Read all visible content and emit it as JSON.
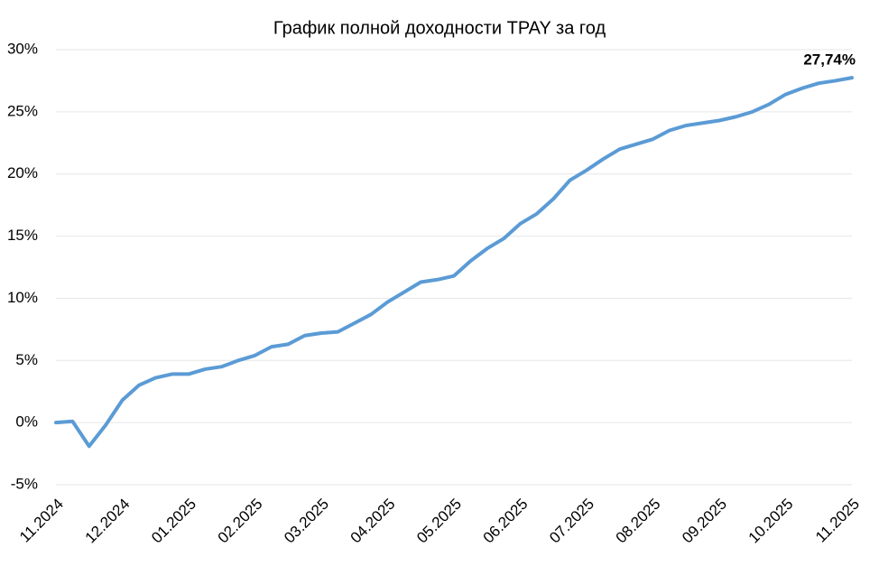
{
  "chart_data": {
    "type": "line",
    "title": "График полной доходности TPAY за год",
    "categories": [
      "11.2024",
      null,
      null,
      null,
      "12.2024",
      null,
      null,
      null,
      "01.2025",
      null,
      null,
      null,
      "02.2025",
      null,
      null,
      null,
      "03.2025",
      null,
      null,
      null,
      "04.2025",
      null,
      null,
      null,
      "05.2025",
      null,
      null,
      null,
      "06.2025",
      null,
      null,
      null,
      "07.2025",
      null,
      null,
      null,
      "08.2025",
      null,
      null,
      null,
      "09.2025",
      null,
      null,
      null,
      "10.2025",
      null,
      null,
      null,
      "11.2025"
    ],
    "series": [
      {
        "name": "TPAY",
        "color": "#5b9bd5",
        "values": [
          0,
          0.1,
          -1.9,
          -0.2,
          1.8,
          3.0,
          3.6,
          3.9,
          3.9,
          4.3,
          4.5,
          5.0,
          5.4,
          6.1,
          6.3,
          7.0,
          7.2,
          7.3,
          8.0,
          8.7,
          9.7,
          10.5,
          11.3,
          11.5,
          11.8,
          13.0,
          14.0,
          14.8,
          16.0,
          16.8,
          18.0,
          19.5,
          20.3,
          21.2,
          22.0,
          22.4,
          22.8,
          23.5,
          23.9,
          24.1,
          24.3,
          24.6,
          25.0,
          25.6,
          26.4,
          26.9,
          27.3,
          27.5,
          27.74
        ],
        "value_labels": [
          null,
          null,
          null,
          null,
          null,
          null,
          null,
          null,
          null,
          null,
          null,
          null,
          null,
          null,
          null,
          null,
          null,
          null,
          null,
          null,
          null,
          null,
          null,
          null,
          null,
          null,
          null,
          null,
          null,
          null,
          null,
          null,
          null,
          null,
          null,
          null,
          null,
          null,
          null,
          null,
          null,
          null,
          null,
          null,
          null,
          null,
          null,
          null,
          "27,74%"
        ]
      }
    ],
    "ylim": [
      -5,
      30
    ],
    "yticks": [
      {
        "value": -5,
        "label": "-5%"
      },
      {
        "value": 0,
        "label": "0%"
      },
      {
        "value": 5,
        "label": "5%"
      },
      {
        "value": 10,
        "label": "10%"
      },
      {
        "value": 15,
        "label": "15%"
      },
      {
        "value": 20,
        "label": "20%"
      },
      {
        "value": 25,
        "label": "25%"
      },
      {
        "value": 30,
        "label": "30%"
      }
    ],
    "grid": true
  }
}
